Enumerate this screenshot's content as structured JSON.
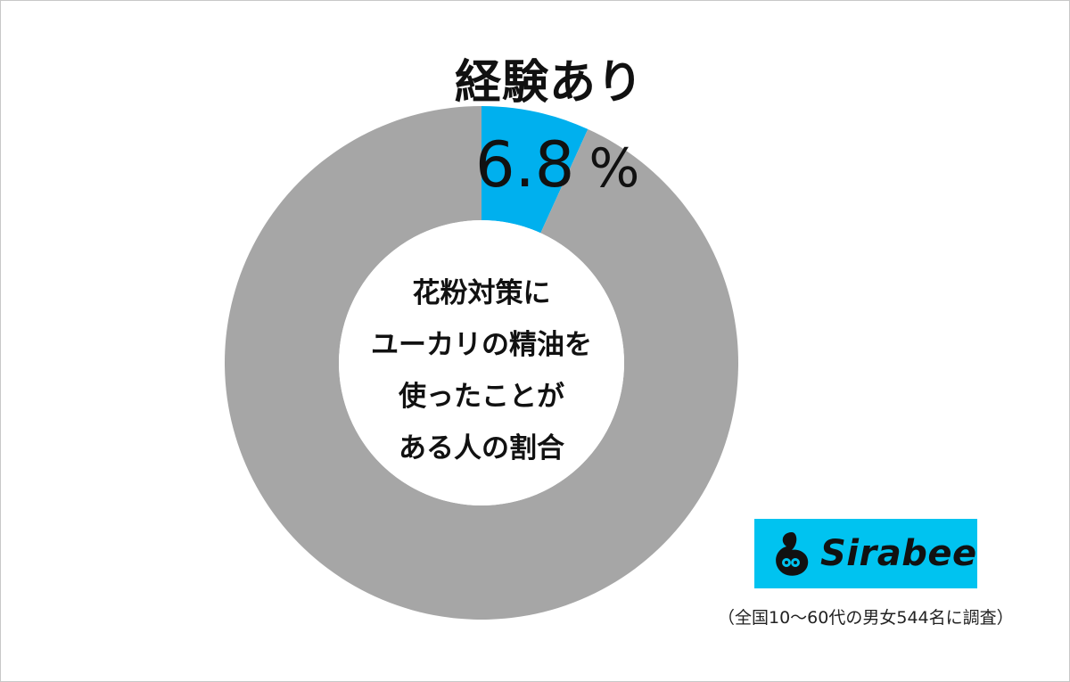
{
  "chart_data": {
    "type": "pie",
    "style": "donut",
    "title": "花粉対策に ユーカリの精油を 使ったことが ある人の割合",
    "title_lines": [
      "花粉対策に",
      "ユーカリの精油を",
      "使ったことが",
      "ある人の割合"
    ],
    "slices": [
      {
        "label": "経験あり",
        "value": 6.8,
        "color": "#00b0ee",
        "labeled": true
      },
      {
        "label": "",
        "value": 93.2,
        "color": "#a6a6a6",
        "labeled": false
      }
    ],
    "value_unit": "%"
  },
  "highlight": {
    "label": "経験あり",
    "value": "6.8",
    "unit": "%"
  },
  "logo": {
    "text": "Sirabee",
    "background": "#00c3f0"
  },
  "note": "（全国10～60代の男女544名に調査）"
}
